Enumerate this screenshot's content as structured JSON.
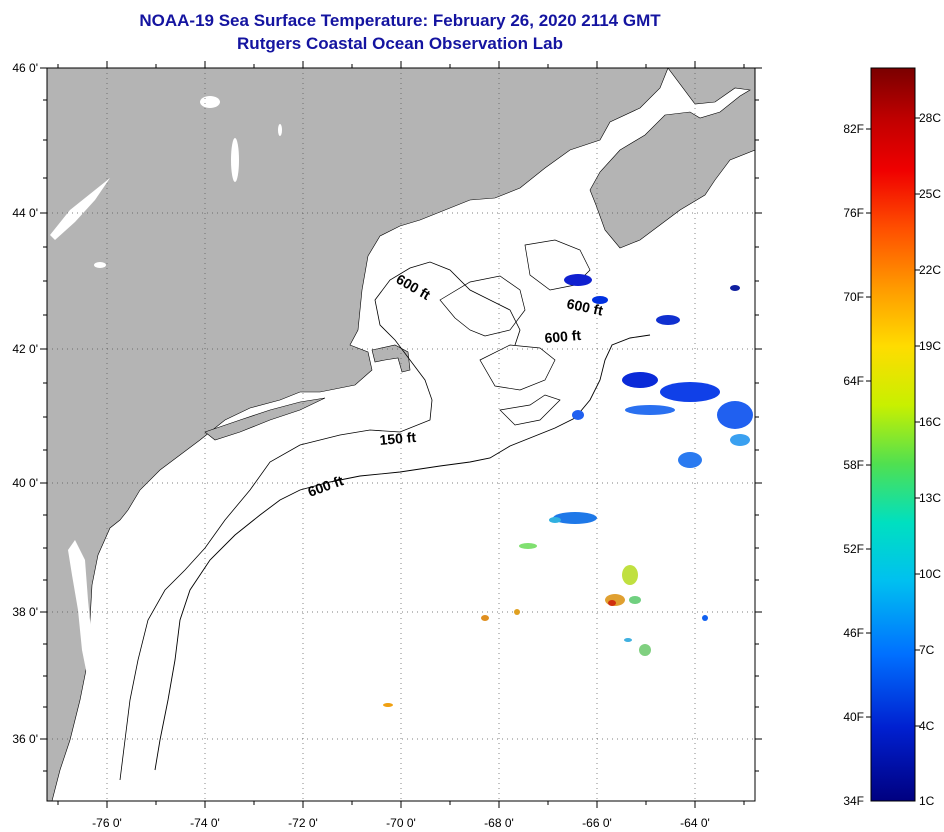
{
  "title": {
    "line1": "NOAA-19 Sea Surface Temperature:  February 26, 2020 2114 GMT",
    "line2": "Rutgers Coastal Ocean Observation Lab"
  },
  "map": {
    "lat_labels": [
      "46 0'",
      "44 0'",
      "42 0'",
      "40 0'",
      "38 0'",
      "36 0'"
    ],
    "lon_labels": [
      "-76 0'",
      "-74 0'",
      "-72 0'",
      "-70 0'",
      "-68 0'",
      "-66 0'",
      "-64 0'"
    ],
    "contour_labels": [
      "600 ft",
      "600 ft",
      "600 ft",
      "150 ft",
      "600 ft"
    ],
    "colors": {
      "land": "#b4b4b4",
      "water": "#ffffff",
      "outline": "#000000"
    }
  },
  "colorbar": {
    "fahrenheit_labels": [
      "82F",
      "76F",
      "70F",
      "64F",
      "58F",
      "52F",
      "46F",
      "40F",
      "34F"
    ],
    "celsius_labels": [
      "28C",
      "25C",
      "22C",
      "19C",
      "16C",
      "13C",
      "10C",
      "7C",
      "4C",
      "1C"
    ],
    "gradient_colors": [
      "#7a0000",
      "#e00000",
      "#ff5000",
      "#ffa000",
      "#ffe000",
      "#b4f000",
      "#40e060",
      "#00e0c0",
      "#00c0f0",
      "#0080ff",
      "#0030e0",
      "#000080"
    ]
  }
}
